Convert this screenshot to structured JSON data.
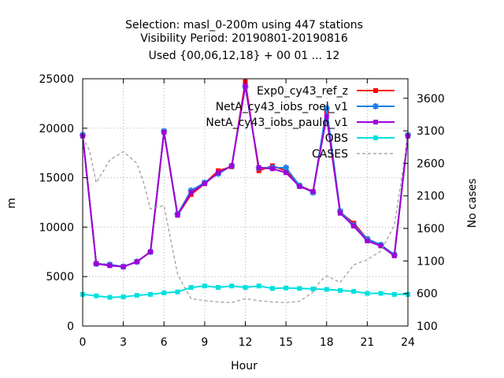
{
  "chart_data": {
    "type": "line",
    "title_lines": [
      "Selection: masl_0-200m using   447 stations",
      "Visibility   Period: 20190801-20190816",
      "Used {00,06,12,18} + 00 01 ... 12"
    ],
    "xlabel": "Hour",
    "ylabel": "m",
    "y2label": "No cases",
    "xlim": [
      0,
      24
    ],
    "ylim": [
      0,
      25000
    ],
    "y2lim": [
      100,
      3900
    ],
    "xticks": [
      "0",
      "3",
      "6",
      "9",
      "12",
      "15",
      "18",
      "21",
      "24"
    ],
    "yticks": [
      "0",
      "5000",
      "10000",
      "15000",
      "20000",
      "25000"
    ],
    "y2ticks": [
      "100",
      "600",
      "1100",
      "1600",
      "2100",
      "2600",
      "3100",
      "3600"
    ],
    "grid": true,
    "legend_position": "top-right",
    "x": [
      0,
      1,
      2,
      3,
      4,
      5,
      6,
      7,
      8,
      9,
      10,
      11,
      12,
      13,
      14,
      15,
      16,
      17,
      18,
      19,
      20,
      21,
      22,
      23,
      24
    ],
    "series": [
      {
        "name": "Exp0_cy43_ref_z",
        "color": "#ff0000",
        "axis": "y",
        "marker": "square",
        "values": [
          19300,
          6300,
          6200,
          6000,
          6500,
          7500,
          19600,
          11200,
          13300,
          14400,
          15700,
          16100,
          24700,
          15700,
          16200,
          15700,
          14200,
          13600,
          21700,
          11500,
          10400,
          8800,
          8200,
          7200,
          19300
        ]
      },
      {
        "name": "NetA_cy43_iobs_roel_v1",
        "color": "#1e7fe6",
        "axis": "y",
        "marker": "star",
        "values": [
          19300,
          6300,
          6200,
          6000,
          6500,
          7500,
          19700,
          11300,
          13700,
          14500,
          15400,
          16200,
          24200,
          16000,
          16000,
          16000,
          14200,
          13500,
          22000,
          11600,
          10200,
          8800,
          8200,
          7200,
          19300
        ]
      },
      {
        "name": "NetA_cy43_iobs_paulo_v1",
        "color": "#a000d8",
        "axis": "y",
        "marker": "square",
        "values": [
          19200,
          6300,
          6100,
          6000,
          6500,
          7500,
          19600,
          11200,
          13500,
          14400,
          15500,
          16200,
          24300,
          16000,
          15900,
          15500,
          14100,
          13600,
          21200,
          11400,
          10100,
          8600,
          8100,
          7100,
          19200
        ]
      },
      {
        "name": "OBS",
        "color": "#00e0e0",
        "axis": "y",
        "marker": "square",
        "values": [
          3200,
          3050,
          2900,
          2950,
          3100,
          3200,
          3350,
          3450,
          3900,
          4050,
          3900,
          4050,
          3900,
          4050,
          3800,
          3850,
          3800,
          3750,
          3700,
          3600,
          3500,
          3300,
          3300,
          3200,
          3200
        ]
      },
      {
        "name": "CASES",
        "color": "#999999",
        "axis": "y2",
        "dashed": true,
        "x": [
          0,
          0.5,
          1,
          2,
          3,
          4,
          4.5,
          5,
          6,
          7,
          7.5,
          8,
          9,
          10,
          11,
          12,
          13,
          14,
          15,
          16,
          17,
          17.5,
          18,
          19,
          20,
          21,
          22,
          23,
          24
        ],
        "values": [
          3000,
          2800,
          2300,
          2650,
          2780,
          2600,
          2300,
          1900,
          1950,
          900,
          700,
          520,
          490,
          470,
          460,
          520,
          490,
          470,
          460,
          480,
          620,
          780,
          870,
          770,
          1040,
          1120,
          1250,
          1650,
          3000
        ]
      }
    ]
  }
}
